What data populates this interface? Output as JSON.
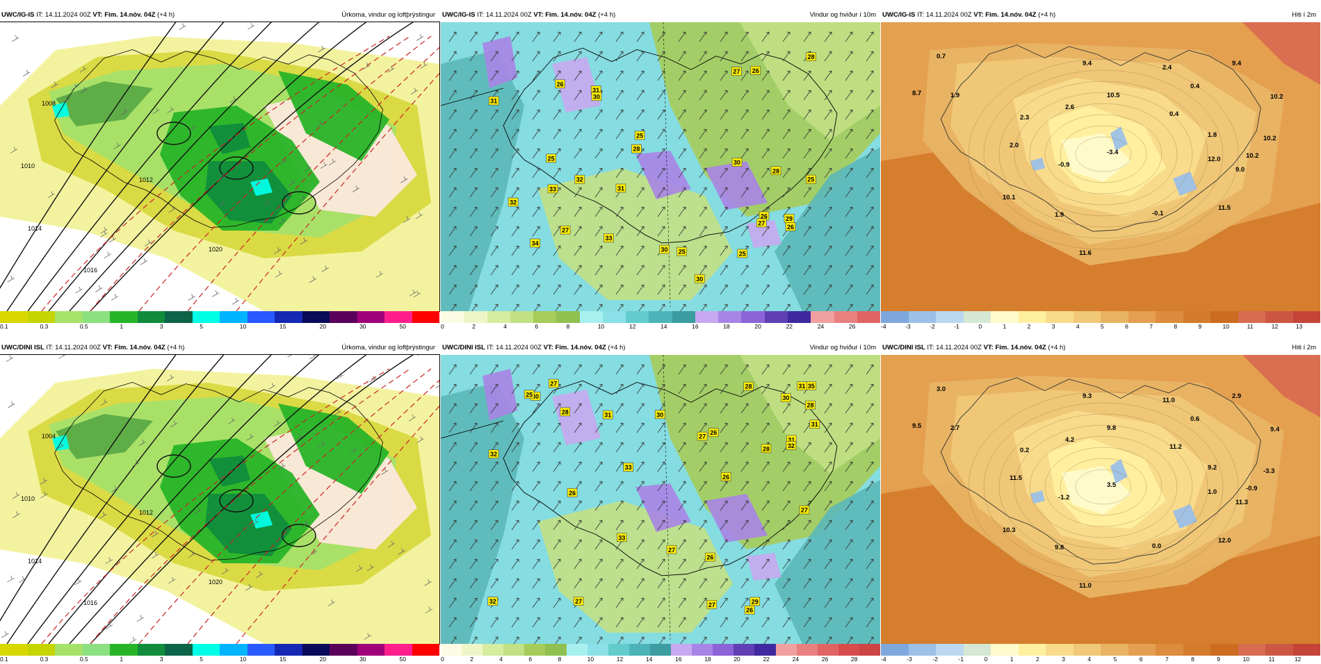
{
  "panels": [
    {
      "id": "p1",
      "model": "UWC/IG-IS",
      "it_label": "IT:",
      "it": "14.11.2024 00Z",
      "vt_label": "VT:",
      "vt": "Fim. 14.nóv. 04Z",
      "offset": "(+4 h)",
      "title": "Úrkoma, vindur og loftþrýstingur",
      "type": "precip",
      "colorbar": {
        "colors": [
          "#d8d800",
          "#c6d400",
          "#a6e26a",
          "#8ce080",
          "#28b428",
          "#108c3c",
          "#0c6448",
          "#00ffe6",
          "#00b4ff",
          "#285aff",
          "#1428b4",
          "#0a0a5a",
          "#5a005a",
          "#a0007a",
          "#ff1e8c",
          "#ff0000"
        ],
        "ticks": [
          "0.1",
          "0.3",
          "0.5",
          "1",
          "3",
          "5",
          "10",
          "15",
          "20",
          "30",
          "50"
        ]
      },
      "isobars": [
        "1008",
        "1010",
        "1012",
        "1014",
        "1016",
        "1020"
      ]
    },
    {
      "id": "p2",
      "model": "UWC/IG-IS",
      "it_label": "IT:",
      "it": "14.11.2024 00Z",
      "vt_label": "VT:",
      "vt": "Fim. 14.nóv. 04Z",
      "offset": "(+4 h)",
      "title": "Vindur og hviður í 10m",
      "type": "wind",
      "colorbar": {
        "colors": [
          "#fcfce4",
          "#eef6c8",
          "#d6eca0",
          "#c2e084",
          "#a6cc5a",
          "#90c050",
          "#a8f0f0",
          "#8ae0e6",
          "#62cccc",
          "#4cb4b8",
          "#3c9ca0",
          "#c8a8f0",
          "#a884e6",
          "#8c64d8",
          "#6040b4",
          "#4028a0",
          "#f0a0a0",
          "#e88080",
          "#e06464"
        ],
        "ticks": [
          "0",
          "2",
          "4",
          "6",
          "8",
          "10",
          "12",
          "14",
          "16",
          "18",
          "20",
          "22",
          "24",
          "26"
        ]
      },
      "gusts": [
        "27",
        "31",
        "26",
        "33",
        "30",
        "28",
        "30",
        "25",
        "28",
        "31",
        "25",
        "26",
        "27",
        "32",
        "25",
        "27",
        "31",
        "26",
        "28",
        "30",
        "29",
        "33",
        "34",
        "26",
        "30",
        "25",
        "32",
        "25"
      ]
    },
    {
      "id": "p3",
      "model": "UWC/IG-IS",
      "it_label": "IT:",
      "it": "14.11.2024 00Z",
      "vt_label": "VT:",
      "vt": "Fim. 14.nóv. 04Z",
      "offset": "(+4 h)",
      "title": "Hiti í 2m",
      "type": "temp",
      "colorbar": {
        "colors": [
          "#7ea8dc",
          "#9cc0e8",
          "#bcd8f0",
          "#d4e8d4",
          "#fffacc",
          "#fff0a0",
          "#f8dc8c",
          "#f0c878",
          "#e8b464",
          "#e4a050",
          "#dc8c3c",
          "#d47c2c",
          "#cc6c20",
          "#d86c50",
          "#cc5844",
          "#c44438"
        ],
        "ticks": [
          "-4",
          "-3",
          "-2",
          "-1",
          "0",
          "1",
          "2",
          "3",
          "4",
          "5",
          "6",
          "7",
          "8",
          "9",
          "10",
          "11",
          "12",
          "13"
        ]
      },
      "temps": [
        "0.7",
        "9.4",
        "2.4",
        "9.4",
        "8.7",
        "1.9",
        "0.4",
        "10.2",
        "10.5",
        "2.6",
        "2.3",
        "0.4",
        "1.8",
        "10.2",
        "2.0",
        "-3.4",
        "12.0",
        "10.2",
        "-0.9",
        "9.0",
        "10.1",
        "1.9",
        "-0.1",
        "11.5",
        "11.6"
      ]
    },
    {
      "id": "p4",
      "model": "UWC/DINI ISL",
      "it_label": "IT:",
      "it": "14.11.2024 00Z",
      "vt_label": "VT:",
      "vt": "Fim. 14.nóv. 04Z",
      "offset": "(+4 h)",
      "title": "Úrkoma, vindur og loftþrýstingur",
      "type": "precip",
      "colorbar": {
        "colors": [
          "#d8d800",
          "#c6d400",
          "#a6e26a",
          "#8ce080",
          "#28b428",
          "#108c3c",
          "#0c6448",
          "#00ffe6",
          "#00b4ff",
          "#285aff",
          "#1428b4",
          "#0a0a5a",
          "#5a005a",
          "#a0007a",
          "#ff1e8c",
          "#ff0000"
        ],
        "ticks": [
          "0.1",
          "0.3",
          "0.5",
          "1",
          "3",
          "5",
          "10",
          "15",
          "20",
          "30",
          "50"
        ]
      },
      "isobars": [
        "1004",
        "1010",
        "1012",
        "1014",
        "1016",
        "1020"
      ]
    },
    {
      "id": "p5",
      "model": "UWC/DINI ISL",
      "it_label": "IT:",
      "it": "14.11.2024 00Z",
      "vt_label": "VT:",
      "vt": "Fim. 14.nóv. 04Z",
      "offset": "(+4 h)",
      "title": "Vindur og hviður í 10m",
      "type": "wind",
      "colorbar": {
        "colors": [
          "#fcfce4",
          "#eef6c8",
          "#d6eca0",
          "#c2e084",
          "#a6cc5a",
          "#90c050",
          "#a8f0f0",
          "#8ae0e6",
          "#62cccc",
          "#4cb4b8",
          "#3c9ca0",
          "#c8a8f0",
          "#a884e6",
          "#8c64d8",
          "#6040b4",
          "#4028a0",
          "#f0a0a0",
          "#e88080",
          "#e06464",
          "#d84c4c",
          "#cc4444"
        ],
        "ticks": [
          "0",
          "2",
          "4",
          "6",
          "8",
          "10",
          "12",
          "14",
          "16",
          "18",
          "20",
          "22",
          "24",
          "26",
          "28"
        ]
      },
      "gusts": [
        "26",
        "35",
        "32",
        "28",
        "27",
        "31",
        "28",
        "26",
        "32",
        "30",
        "30",
        "26",
        "27",
        "25",
        "27",
        "29",
        "28",
        "31",
        "27",
        "31",
        "28",
        "33",
        "30",
        "33",
        "27",
        "32",
        "26",
        "27",
        "31",
        "26"
      ]
    },
    {
      "id": "p6",
      "model": "UWC/DINI ISL",
      "it_label": "IT:",
      "it": "14.11.2024 00Z",
      "vt_label": "VT:",
      "vt": "Fim. 14.nóv. 04Z",
      "offset": "(+4 h)",
      "title": "Hiti í 2m",
      "type": "temp",
      "colorbar": {
        "colors": [
          "#7ea8dc",
          "#9cc0e8",
          "#bcd8f0",
          "#d4e8d4",
          "#fffacc",
          "#fff0a0",
          "#f8dc8c",
          "#f0c878",
          "#e8b464",
          "#e4a050",
          "#dc8c3c",
          "#d47c2c",
          "#cc6c20",
          "#d86c50",
          "#cc5844",
          "#c44438"
        ],
        "ticks": [
          "-4",
          "-3",
          "-2",
          "-1",
          "0",
          "1",
          "2",
          "3",
          "4",
          "5",
          "6",
          "7",
          "8",
          "9",
          "10",
          "11",
          "12"
        ]
      },
      "temps": [
        "3.0",
        "9.3",
        "11.0",
        "2.9",
        "9.5",
        "2.7",
        "0.6",
        "9.4",
        "9.8",
        "4.2",
        "0.2",
        "11.2",
        "9.2",
        "-3.3",
        "11.5",
        "3.5",
        "1.0",
        "-0.9",
        "-1.2",
        "11.3",
        "10.3",
        "9.8",
        "0.0",
        "12.0",
        "11.0"
      ]
    }
  ]
}
